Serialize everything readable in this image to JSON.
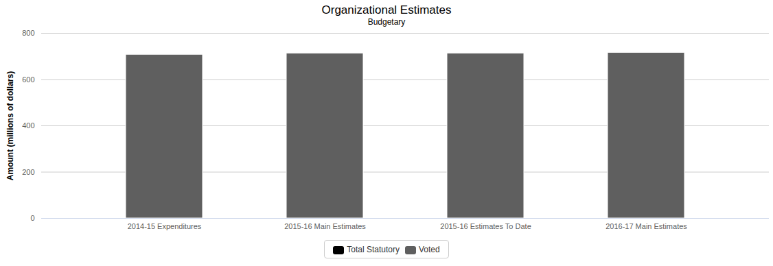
{
  "chart_data": {
    "type": "bar",
    "stacked": true,
    "title": "Organizational Estimates",
    "subtitle": "Budgetary",
    "y_label": "Amount (millions of dollars)",
    "categories": [
      "2014-15 Expenditures",
      "2015-16 Main Estimates",
      "2015-16 Estimates To Date",
      "2016-17 Main Estimates"
    ],
    "series": [
      {
        "name": "Total Statutory",
        "color": "#000000",
        "values": [
          3,
          3,
          3,
          3
        ]
      },
      {
        "name": "Voted",
        "color": "#5f5f5f",
        "values": [
          708,
          713,
          713,
          716
        ]
      }
    ],
    "ylim": [
      0,
      800
    ],
    "yticks": [
      0,
      200,
      400,
      600,
      800
    ],
    "grid": true,
    "legend": "bottom"
  }
}
